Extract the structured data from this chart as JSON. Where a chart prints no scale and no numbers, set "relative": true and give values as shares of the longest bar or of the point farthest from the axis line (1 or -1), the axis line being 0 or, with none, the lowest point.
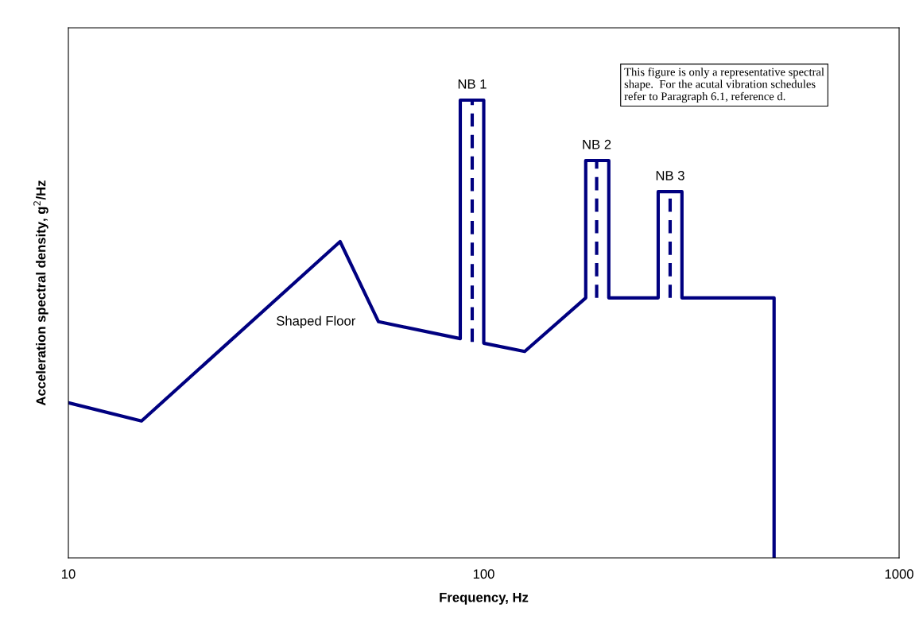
{
  "chart_data": {
    "type": "line",
    "relative": true,
    "log": "x",
    "grid": false,
    "legend": false,
    "xlabel": "Frequency, Hz",
    "ylabel": "Acceleration spectral density, g$^{2}$/Hz",
    "xlim": [
      10,
      1000
    ],
    "xticks": [
      10,
      100,
      1000
    ],
    "tick_labels": "x",
    "series": [
      {
        "color": "#000080",
        "line_style": "solid",
        "x": [
          10,
          15,
          45.1,
          55.8,
          87.8,
          87.8,
          100,
          100,
          125.5,
          176,
          176,
          200,
          200,
          263,
          263,
          300,
          300,
          500,
          500
        ],
        "values": [
          0.339,
          0.299,
          0.691,
          0.516,
          0.479,
          1.0,
          1.0,
          0.469,
          0.451,
          0.568,
          0.868,
          0.868,
          0.568,
          0.568,
          0.8,
          0.8,
          0.568,
          0.568,
          0
        ]
      },
      {
        "color": "#000080",
        "line_style": "dashed",
        "x": [
          93.8,
          93.8
        ],
        "values": [
          0.472,
          1.0
        ]
      },
      {
        "color": "#000080",
        "line_style": "dashed",
        "x": [
          187,
          187
        ],
        "values": [
          0.568,
          0.868
        ]
      },
      {
        "color": "#000080",
        "line_style": "dashed",
        "x": [
          281,
          281
        ],
        "values": [
          0.568,
          0.8
        ]
      }
    ],
    "annotations": [
      {
        "text": "NB 1",
        "x": 93.8,
        "y": 1.0
      },
      {
        "text": "NB 2",
        "x": 187,
        "y": 0.868
      },
      {
        "text": "NB 3",
        "x": 281,
        "y": 0.8
      },
      "Shaped Floor",
      "This figure is only a representative spectral\nshape.  For the acutal vibration schedules\nrefer to Paragraph 6.1, reference d."
    ]
  }
}
